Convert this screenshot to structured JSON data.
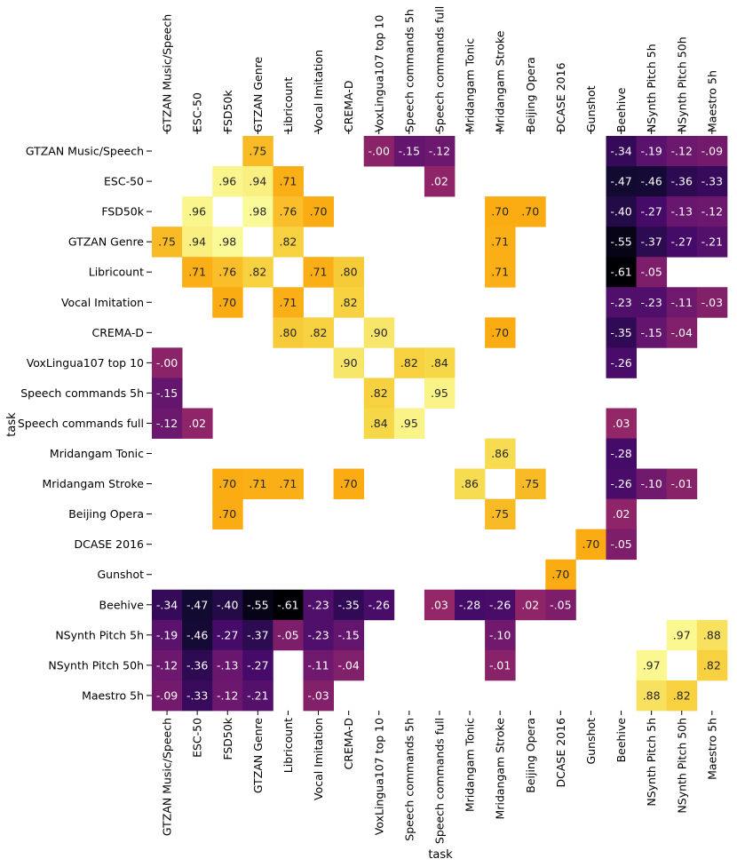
{
  "chart_data": {
    "type": "heatmap",
    "title": "",
    "xlabel": "task",
    "ylabel": "task",
    "colormap": "inferno",
    "value_range": [
      -0.61,
      1.0
    ],
    "tasks": [
      "GTZAN Music/Speech",
      "ESC-50",
      "FSD50k",
      "GTZAN Genre",
      "Libricount",
      "Vocal Imitation",
      "CREMA-D",
      "VoxLingua107 top 10",
      "Speech commands 5h",
      "Speech commands full",
      "Mridangam Tonic",
      "Mridangam Stroke",
      "Beijing Opera",
      "DCASE 2016",
      "Gunshot",
      "Beehive",
      "NSynth Pitch 5h",
      "NSynth Pitch 50h",
      "Maestro 5h"
    ],
    "cells": [
      {
        "row": "GTZAN Music/Speech",
        "col": "GTZAN Genre",
        "value": 0.75,
        "label": ".75"
      },
      {
        "row": "GTZAN Music/Speech",
        "col": "VoxLingua107 top 10",
        "value": -0.0,
        "label": "-.00"
      },
      {
        "row": "GTZAN Music/Speech",
        "col": "Speech commands 5h",
        "value": -0.15,
        "label": "-.15"
      },
      {
        "row": "GTZAN Music/Speech",
        "col": "Speech commands full",
        "value": -0.12,
        "label": "-.12"
      },
      {
        "row": "GTZAN Music/Speech",
        "col": "Beehive",
        "value": -0.34,
        "label": "-.34"
      },
      {
        "row": "GTZAN Music/Speech",
        "col": "NSynth Pitch 5h",
        "value": -0.19,
        "label": "-.19"
      },
      {
        "row": "GTZAN Music/Speech",
        "col": "NSynth Pitch 50h",
        "value": -0.12,
        "label": "-.12"
      },
      {
        "row": "GTZAN Music/Speech",
        "col": "Maestro 5h",
        "value": -0.09,
        "label": "-.09"
      },
      {
        "row": "ESC-50",
        "col": "FSD50k",
        "value": 0.96,
        "label": ".96"
      },
      {
        "row": "ESC-50",
        "col": "GTZAN Genre",
        "value": 0.94,
        "label": ".94"
      },
      {
        "row": "ESC-50",
        "col": "Libricount",
        "value": 0.71,
        "label": ".71"
      },
      {
        "row": "ESC-50",
        "col": "Speech commands full",
        "value": 0.02,
        "label": ".02"
      },
      {
        "row": "ESC-50",
        "col": "Beehive",
        "value": -0.47,
        "label": "-.47"
      },
      {
        "row": "ESC-50",
        "col": "NSynth Pitch 5h",
        "value": -0.46,
        "label": "-.46"
      },
      {
        "row": "ESC-50",
        "col": "NSynth Pitch 50h",
        "value": -0.36,
        "label": "-.36"
      },
      {
        "row": "ESC-50",
        "col": "Maestro 5h",
        "value": -0.33,
        "label": "-.33"
      },
      {
        "row": "FSD50k",
        "col": "ESC-50",
        "value": 0.96,
        "label": ".96"
      },
      {
        "row": "FSD50k",
        "col": "GTZAN Genre",
        "value": 0.98,
        "label": ".98"
      },
      {
        "row": "FSD50k",
        "col": "Libricount",
        "value": 0.76,
        "label": ".76"
      },
      {
        "row": "FSD50k",
        "col": "Vocal Imitation",
        "value": 0.7,
        "label": ".70"
      },
      {
        "row": "FSD50k",
        "col": "Mridangam Stroke",
        "value": 0.7,
        "label": ".70"
      },
      {
        "row": "FSD50k",
        "col": "Beijing Opera",
        "value": 0.7,
        "label": ".70"
      },
      {
        "row": "FSD50k",
        "col": "Beehive",
        "value": -0.4,
        "label": "-.40"
      },
      {
        "row": "FSD50k",
        "col": "NSynth Pitch 5h",
        "value": -0.27,
        "label": "-.27"
      },
      {
        "row": "FSD50k",
        "col": "NSynth Pitch 50h",
        "value": -0.13,
        "label": "-.13"
      },
      {
        "row": "FSD50k",
        "col": "Maestro 5h",
        "value": -0.12,
        "label": "-.12"
      },
      {
        "row": "GTZAN Genre",
        "col": "GTZAN Music/Speech",
        "value": 0.75,
        "label": ".75"
      },
      {
        "row": "GTZAN Genre",
        "col": "ESC-50",
        "value": 0.94,
        "label": ".94"
      },
      {
        "row": "GTZAN Genre",
        "col": "FSD50k",
        "value": 0.98,
        "label": ".98"
      },
      {
        "row": "GTZAN Genre",
        "col": "Libricount",
        "value": 0.82,
        "label": ".82"
      },
      {
        "row": "GTZAN Genre",
        "col": "Mridangam Stroke",
        "value": 0.71,
        "label": ".71"
      },
      {
        "row": "GTZAN Genre",
        "col": "Beehive",
        "value": -0.55,
        "label": "-.55"
      },
      {
        "row": "GTZAN Genre",
        "col": "NSynth Pitch 5h",
        "value": -0.37,
        "label": "-.37"
      },
      {
        "row": "GTZAN Genre",
        "col": "NSynth Pitch 50h",
        "value": -0.27,
        "label": "-.27"
      },
      {
        "row": "GTZAN Genre",
        "col": "Maestro 5h",
        "value": -0.21,
        "label": "-.21"
      },
      {
        "row": "Libricount",
        "col": "ESC-50",
        "value": 0.71,
        "label": ".71"
      },
      {
        "row": "Libricount",
        "col": "FSD50k",
        "value": 0.76,
        "label": ".76"
      },
      {
        "row": "Libricount",
        "col": "GTZAN Genre",
        "value": 0.82,
        "label": ".82"
      },
      {
        "row": "Libricount",
        "col": "Vocal Imitation",
        "value": 0.71,
        "label": ".71"
      },
      {
        "row": "Libricount",
        "col": "CREMA-D",
        "value": 0.8,
        "label": ".80"
      },
      {
        "row": "Libricount",
        "col": "Mridangam Stroke",
        "value": 0.71,
        "label": ".71"
      },
      {
        "row": "Libricount",
        "col": "Beehive",
        "value": -0.61,
        "label": "-.61"
      },
      {
        "row": "Libricount",
        "col": "NSynth Pitch 5h",
        "value": -0.05,
        "label": "-.05"
      },
      {
        "row": "Vocal Imitation",
        "col": "FSD50k",
        "value": 0.7,
        "label": ".70"
      },
      {
        "row": "Vocal Imitation",
        "col": "Libricount",
        "value": 0.71,
        "label": ".71"
      },
      {
        "row": "Vocal Imitation",
        "col": "CREMA-D",
        "value": 0.82,
        "label": ".82"
      },
      {
        "row": "Vocal Imitation",
        "col": "Beehive",
        "value": -0.23,
        "label": "-.23"
      },
      {
        "row": "Vocal Imitation",
        "col": "NSynth Pitch 5h",
        "value": -0.23,
        "label": "-.23"
      },
      {
        "row": "Vocal Imitation",
        "col": "NSynth Pitch 50h",
        "value": -0.11,
        "label": "-.11"
      },
      {
        "row": "Vocal Imitation",
        "col": "Maestro 5h",
        "value": -0.03,
        "label": "-.03"
      },
      {
        "row": "CREMA-D",
        "col": "Libricount",
        "value": 0.8,
        "label": ".80"
      },
      {
        "row": "CREMA-D",
        "col": "Vocal Imitation",
        "value": 0.82,
        "label": ".82"
      },
      {
        "row": "CREMA-D",
        "col": "VoxLingua107 top 10",
        "value": 0.9,
        "label": ".90"
      },
      {
        "row": "CREMA-D",
        "col": "Mridangam Stroke",
        "value": 0.7,
        "label": ".70"
      },
      {
        "row": "CREMA-D",
        "col": "Beehive",
        "value": -0.35,
        "label": "-.35"
      },
      {
        "row": "CREMA-D",
        "col": "NSynth Pitch 5h",
        "value": -0.15,
        "label": "-.15"
      },
      {
        "row": "CREMA-D",
        "col": "NSynth Pitch 50h",
        "value": -0.04,
        "label": "-.04"
      },
      {
        "row": "VoxLingua107 top 10",
        "col": "GTZAN Music/Speech",
        "value": -0.0,
        "label": "-.00"
      },
      {
        "row": "VoxLingua107 top 10",
        "col": "CREMA-D",
        "value": 0.9,
        "label": ".90"
      },
      {
        "row": "VoxLingua107 top 10",
        "col": "Speech commands 5h",
        "value": 0.82,
        "label": ".82"
      },
      {
        "row": "VoxLingua107 top 10",
        "col": "Speech commands full",
        "value": 0.84,
        "label": ".84"
      },
      {
        "row": "VoxLingua107 top 10",
        "col": "Beehive",
        "value": -0.26,
        "label": "-.26"
      },
      {
        "row": "Speech commands 5h",
        "col": "GTZAN Music/Speech",
        "value": -0.15,
        "label": "-.15"
      },
      {
        "row": "Speech commands 5h",
        "col": "VoxLingua107 top 10",
        "value": 0.82,
        "label": ".82"
      },
      {
        "row": "Speech commands 5h",
        "col": "Speech commands full",
        "value": 0.95,
        "label": ".95"
      },
      {
        "row": "Speech commands full",
        "col": "GTZAN Music/Speech",
        "value": -0.12,
        "label": "-.12"
      },
      {
        "row": "Speech commands full",
        "col": "ESC-50",
        "value": 0.02,
        "label": ".02"
      },
      {
        "row": "Speech commands full",
        "col": "VoxLingua107 top 10",
        "value": 0.84,
        "label": ".84"
      },
      {
        "row": "Speech commands full",
        "col": "Speech commands 5h",
        "value": 0.95,
        "label": ".95"
      },
      {
        "row": "Speech commands full",
        "col": "Beehive",
        "value": 0.03,
        "label": ".03"
      },
      {
        "row": "Mridangam Tonic",
        "col": "Mridangam Stroke",
        "value": 0.86,
        "label": ".86"
      },
      {
        "row": "Mridangam Tonic",
        "col": "Beehive",
        "value": -0.28,
        "label": "-.28"
      },
      {
        "row": "Mridangam Stroke",
        "col": "FSD50k",
        "value": 0.7,
        "label": ".70"
      },
      {
        "row": "Mridangam Stroke",
        "col": "GTZAN Genre",
        "value": 0.71,
        "label": ".71"
      },
      {
        "row": "Mridangam Stroke",
        "col": "Libricount",
        "value": 0.71,
        "label": ".71"
      },
      {
        "row": "Mridangam Stroke",
        "col": "CREMA-D",
        "value": 0.7,
        "label": ".70"
      },
      {
        "row": "Mridangam Stroke",
        "col": "Mridangam Tonic",
        "value": 0.86,
        "label": ".86"
      },
      {
        "row": "Mridangam Stroke",
        "col": "Beijing Opera",
        "value": 0.75,
        "label": ".75"
      },
      {
        "row": "Mridangam Stroke",
        "col": "Beehive",
        "value": -0.26,
        "label": "-.26"
      },
      {
        "row": "Mridangam Stroke",
        "col": "NSynth Pitch 5h",
        "value": -0.1,
        "label": "-.10"
      },
      {
        "row": "Mridangam Stroke",
        "col": "NSynth Pitch 50h",
        "value": -0.01,
        "label": "-.01"
      },
      {
        "row": "Beijing Opera",
        "col": "FSD50k",
        "value": 0.7,
        "label": ".70"
      },
      {
        "row": "Beijing Opera",
        "col": "Mridangam Stroke",
        "value": 0.75,
        "label": ".75"
      },
      {
        "row": "Beijing Opera",
        "col": "Beehive",
        "value": 0.02,
        "label": ".02"
      },
      {
        "row": "DCASE 2016",
        "col": "Gunshot",
        "value": 0.7,
        "label": ".70"
      },
      {
        "row": "DCASE 2016",
        "col": "Beehive",
        "value": -0.05,
        "label": "-.05"
      },
      {
        "row": "Gunshot",
        "col": "DCASE 2016",
        "value": 0.7,
        "label": ".70"
      },
      {
        "row": "Beehive",
        "col": "GTZAN Music/Speech",
        "value": -0.34,
        "label": "-.34"
      },
      {
        "row": "Beehive",
        "col": "ESC-50",
        "value": -0.47,
        "label": "-.47"
      },
      {
        "row": "Beehive",
        "col": "FSD50k",
        "value": -0.4,
        "label": "-.40"
      },
      {
        "row": "Beehive",
        "col": "GTZAN Genre",
        "value": -0.55,
        "label": "-.55"
      },
      {
        "row": "Beehive",
        "col": "Libricount",
        "value": -0.61,
        "label": "-.61"
      },
      {
        "row": "Beehive",
        "col": "Vocal Imitation",
        "value": -0.23,
        "label": "-.23"
      },
      {
        "row": "Beehive",
        "col": "CREMA-D",
        "value": -0.35,
        "label": "-.35"
      },
      {
        "row": "Beehive",
        "col": "VoxLingua107 top 10",
        "value": -0.26,
        "label": "-.26"
      },
      {
        "row": "Beehive",
        "col": "Speech commands full",
        "value": 0.03,
        "label": ".03"
      },
      {
        "row": "Beehive",
        "col": "Mridangam Tonic",
        "value": -0.28,
        "label": "-.28"
      },
      {
        "row": "Beehive",
        "col": "Mridangam Stroke",
        "value": -0.26,
        "label": "-.26"
      },
      {
        "row": "Beehive",
        "col": "Beijing Opera",
        "value": 0.02,
        "label": ".02"
      },
      {
        "row": "Beehive",
        "col": "DCASE 2016",
        "value": -0.05,
        "label": "-.05"
      },
      {
        "row": "NSynth Pitch 5h",
        "col": "GTZAN Music/Speech",
        "value": -0.19,
        "label": "-.19"
      },
      {
        "row": "NSynth Pitch 5h",
        "col": "ESC-50",
        "value": -0.46,
        "label": "-.46"
      },
      {
        "row": "NSynth Pitch 5h",
        "col": "FSD50k",
        "value": -0.27,
        "label": "-.27"
      },
      {
        "row": "NSynth Pitch 5h",
        "col": "GTZAN Genre",
        "value": -0.37,
        "label": "-.37"
      },
      {
        "row": "NSynth Pitch 5h",
        "col": "Libricount",
        "value": -0.05,
        "label": "-.05"
      },
      {
        "row": "NSynth Pitch 5h",
        "col": "Vocal Imitation",
        "value": -0.23,
        "label": "-.23"
      },
      {
        "row": "NSynth Pitch 5h",
        "col": "CREMA-D",
        "value": -0.15,
        "label": "-.15"
      },
      {
        "row": "NSynth Pitch 5h",
        "col": "Mridangam Stroke",
        "value": -0.1,
        "label": "-.10"
      },
      {
        "row": "NSynth Pitch 5h",
        "col": "NSynth Pitch 50h",
        "value": 0.97,
        "label": ".97"
      },
      {
        "row": "NSynth Pitch 5h",
        "col": "Maestro 5h",
        "value": 0.88,
        "label": ".88"
      },
      {
        "row": "NSynth Pitch 50h",
        "col": "GTZAN Music/Speech",
        "value": -0.12,
        "label": "-.12"
      },
      {
        "row": "NSynth Pitch 50h",
        "col": "ESC-50",
        "value": -0.36,
        "label": "-.36"
      },
      {
        "row": "NSynth Pitch 50h",
        "col": "FSD50k",
        "value": -0.13,
        "label": "-.13"
      },
      {
        "row": "NSynth Pitch 50h",
        "col": "GTZAN Genre",
        "value": -0.27,
        "label": "-.27"
      },
      {
        "row": "NSynth Pitch 50h",
        "col": "Vocal Imitation",
        "value": -0.11,
        "label": "-.11"
      },
      {
        "row": "NSynth Pitch 50h",
        "col": "CREMA-D",
        "value": -0.04,
        "label": "-.04"
      },
      {
        "row": "NSynth Pitch 50h",
        "col": "Mridangam Stroke",
        "value": -0.01,
        "label": "-.01"
      },
      {
        "row": "NSynth Pitch 50h",
        "col": "NSynth Pitch 5h",
        "value": 0.97,
        "label": ".97"
      },
      {
        "row": "NSynth Pitch 50h",
        "col": "Maestro 5h",
        "value": 0.82,
        "label": ".82"
      },
      {
        "row": "Maestro 5h",
        "col": "GTZAN Music/Speech",
        "value": -0.09,
        "label": "-.09"
      },
      {
        "row": "Maestro 5h",
        "col": "ESC-50",
        "value": -0.33,
        "label": "-.33"
      },
      {
        "row": "Maestro 5h",
        "col": "FSD50k",
        "value": -0.12,
        "label": "-.12"
      },
      {
        "row": "Maestro 5h",
        "col": "GTZAN Genre",
        "value": -0.21,
        "label": "-.21"
      },
      {
        "row": "Maestro 5h",
        "col": "Vocal Imitation",
        "value": -0.03,
        "label": "-.03"
      },
      {
        "row": "Maestro 5h",
        "col": "NSynth Pitch 5h",
        "value": 0.88,
        "label": ".88"
      },
      {
        "row": "Maestro 5h",
        "col": "NSynth Pitch 50h",
        "value": 0.82,
        "label": ".82"
      }
    ]
  }
}
